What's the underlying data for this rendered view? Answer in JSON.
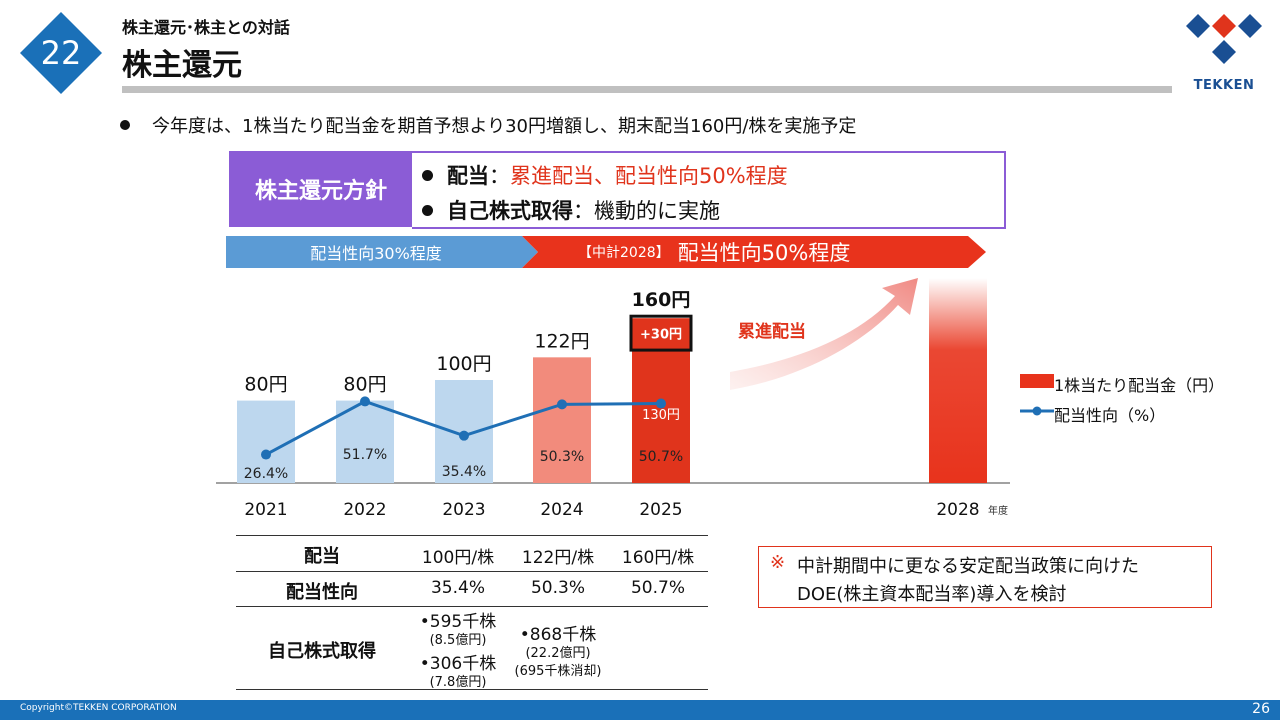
{
  "header": {
    "section_number": "22",
    "section_label": "株主還元･株主との対話",
    "title": "株主還元",
    "logo_text": "TEKKEN"
  },
  "lead_text": "今年度は、1株当たり配当金を期首予想より30円増額し、期末配当160円/株を実施予定",
  "policy": {
    "heading": "株主還元方針",
    "line1_label": "配当",
    "line1_sep": "：",
    "line1_text": "累進配当、配当性向50%程度",
    "line2_label": "自己株式取得",
    "line2_sep": "：",
    "line2_text": "機動的に実施"
  },
  "banner": {
    "left_text": "配当性向30%程度",
    "right_small": "【中計2028】",
    "right_big": "配当性向50%程度"
  },
  "colors": {
    "purple": "#8b5cd6",
    "blue_banner": "#5b9bd5",
    "red": "#e0341c",
    "bar_light_blue": "#bdd7ee",
    "bar_salmon": "#f28b7c",
    "line_blue": "#1f6fb5",
    "footer_blue": "#1a70b8"
  },
  "chart_data": {
    "type": "bar",
    "categories": [
      "2021",
      "2022",
      "2023",
      "2024",
      "2025",
      "2028"
    ],
    "series": [
      {
        "name": "1株当たり配当金（円）",
        "values": [
          80,
          80,
          100,
          122,
          160,
          null
        ],
        "labels": [
          "80円",
          "80円",
          "100円",
          "122円",
          "160円",
          ""
        ]
      },
      {
        "name": "配当性向（%）",
        "type": "line",
        "values": [
          26.4,
          51.7,
          35.4,
          50.3,
          50.7,
          null
        ],
        "labels": [
          "26.4%",
          "51.7%",
          "35.4%",
          "50.3%",
          "50.7%",
          ""
        ]
      }
    ],
    "annotations": {
      "initial_forecast_2025": 130,
      "initial_forecast_label": "130円",
      "increase_label": "+30円",
      "arrow_label": "累進配当"
    },
    "x_unit": "年度",
    "ylim": [
      0,
      180
    ]
  },
  "legend": {
    "bar": "1株当たり配当金（円）",
    "line": "配当性向（%）"
  },
  "table": {
    "rows": [
      {
        "header": "配当",
        "values": [
          "100円/株",
          "122円/株",
          "160円/株"
        ]
      },
      {
        "header": "配当性向",
        "values": [
          "35.4%",
          "50.3%",
          "50.7%"
        ]
      }
    ],
    "buyback": {
      "header": "自己株式取得",
      "y2023_a": "•595千株",
      "y2023_a_sub": "(8.5億円)",
      "y2023_b": "•306千株",
      "y2023_b_sub": "(7.8億円)",
      "y2024": "•868千株",
      "y2024_sub": "(22.2億円)",
      "y2024_sub2": "(695千株消却)"
    }
  },
  "note": {
    "mark": "※",
    "line1": "中計期間中に更なる安定配当政策に向けた",
    "line2": "DOE(株主資本配当率)導入を検討"
  },
  "footer": {
    "copyright": "Copyright©TEKKEN CORPORATION",
    "page_number": "26"
  }
}
